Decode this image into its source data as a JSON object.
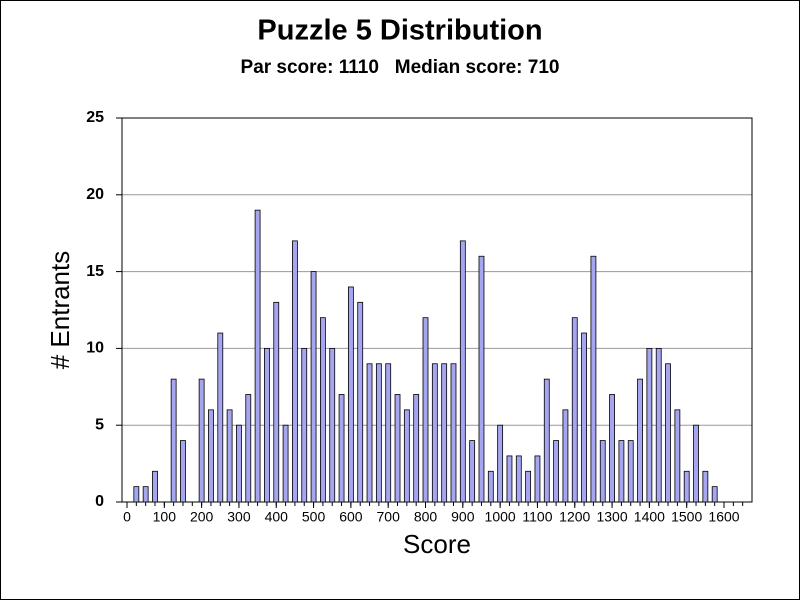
{
  "chart_data": {
    "type": "bar",
    "title": "Puzzle 5 Distribution",
    "subtitle": "Par score: 1110   Median score: 710",
    "xlabel": "Score",
    "ylabel": "# Entrants",
    "x": [
      25,
      50,
      75,
      100,
      125,
      150,
      175,
      200,
      225,
      250,
      275,
      300,
      325,
      350,
      375,
      400,
      425,
      450,
      475,
      500,
      525,
      550,
      575,
      600,
      625,
      650,
      675,
      700,
      725,
      750,
      775,
      800,
      825,
      850,
      875,
      900,
      925,
      950,
      975,
      1000,
      1025,
      1050,
      1075,
      1100,
      1125,
      1150,
      1175,
      1200,
      1225,
      1250,
      1275,
      1300,
      1325,
      1350,
      1375,
      1400,
      1425,
      1450,
      1475,
      1500,
      1525,
      1550,
      1575,
      1600,
      1625,
      1650
    ],
    "values": [
      1,
      1,
      2,
      0,
      8,
      4,
      0,
      8,
      6,
      11,
      6,
      5,
      7,
      19,
      10,
      13,
      5,
      17,
      10,
      15,
      12,
      10,
      7,
      14,
      13,
      9,
      9,
      9,
      7,
      6,
      7,
      12,
      9,
      9,
      9,
      17,
      4,
      16,
      2,
      5,
      3,
      3,
      2,
      3,
      8,
      4,
      6,
      12,
      11,
      16,
      4,
      7,
      4,
      4,
      8,
      10,
      10,
      9,
      6,
      2,
      5,
      2,
      1,
      0,
      0,
      0
    ],
    "color": "#a6a6f0",
    "xlim": [
      0,
      1675
    ],
    "xticks": [
      0,
      100,
      200,
      300,
      400,
      500,
      600,
      700,
      800,
      900,
      1000,
      1100,
      1200,
      1300,
      1400,
      1500,
      1600
    ],
    "ylim": [
      0,
      25
    ],
    "yticks": [
      0,
      5,
      10,
      15,
      20,
      25
    ],
    "grid": true
  }
}
